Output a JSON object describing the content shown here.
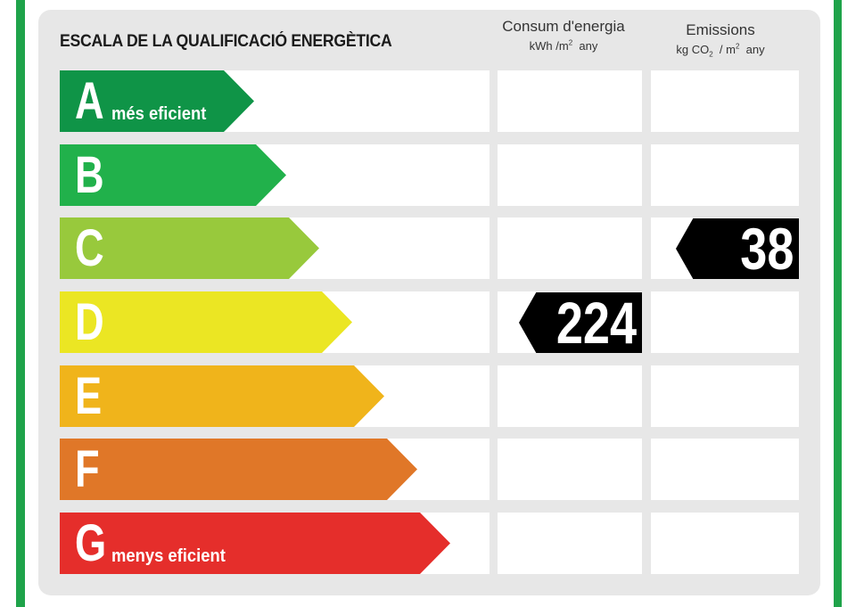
{
  "title": "ESCALA DE LA QUALIFICACIÓ ENERGÈTICA",
  "columns": {
    "energy": {
      "label": "Consum d'energia",
      "unit_a": "kWh /m",
      "unit_sup": "2",
      "unit_b": "any"
    },
    "emissions": {
      "label": "Emissions",
      "unit_a": "kg CO",
      "unit_sub": "2",
      "unit_c": "/ m",
      "unit_sup": "2",
      "unit_d": "any"
    }
  },
  "rows": [
    {
      "letter": "A",
      "note": "més eficient",
      "color": "#0f9447"
    },
    {
      "letter": "B",
      "note": "",
      "color": "#21b14b"
    },
    {
      "letter": "C",
      "note": "",
      "color": "#98c93c"
    },
    {
      "letter": "D",
      "note": "",
      "color": "#ebe623"
    },
    {
      "letter": "E",
      "note": "",
      "color": "#f0b41b"
    },
    {
      "letter": "F",
      "note": "",
      "color": "#e07728"
    },
    {
      "letter": "G",
      "note": "menys eficient",
      "color": "#e52e2b"
    }
  ],
  "ratings": {
    "energy": {
      "class": "D",
      "value": "224"
    },
    "emissions": {
      "class": "C",
      "value": "38"
    }
  },
  "border_color": "#1fa34a"
}
